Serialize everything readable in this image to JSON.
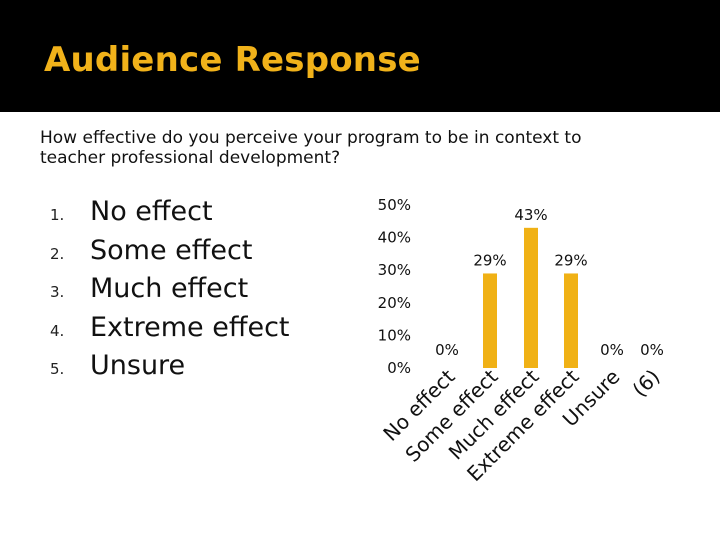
{
  "slide": {
    "title": "Audience Response",
    "question": "How effective do you perceive your program to be in context to teacher professional development?"
  },
  "options": [
    {
      "num": "1.",
      "label": "No effect"
    },
    {
      "num": "2.",
      "label": "Some effect"
    },
    {
      "num": "3.",
      "label": "Much effect"
    },
    {
      "num": "4.",
      "label": "Extreme effect"
    },
    {
      "num": "5.",
      "label": "Unsure"
    }
  ],
  "colors": {
    "title_bar": "#000000",
    "title_text": "#f1b21a",
    "bar": "#f0b115"
  },
  "chart_data": {
    "type": "bar",
    "categories": [
      "No effect",
      "Some effect",
      "Much effect",
      "Extreme effect",
      "Unsure",
      "(6)"
    ],
    "values": [
      0,
      29,
      43,
      29,
      0,
      0
    ],
    "value_labels": [
      "0%",
      "29%",
      "43%",
      "29%",
      "0%",
      "0%"
    ],
    "y_ticks": [
      "0%",
      "10%",
      "20%",
      "30%",
      "40%",
      "50%"
    ],
    "ylim": [
      0,
      50
    ],
    "ylabel": "",
    "xlabel": "",
    "grid": false
  }
}
